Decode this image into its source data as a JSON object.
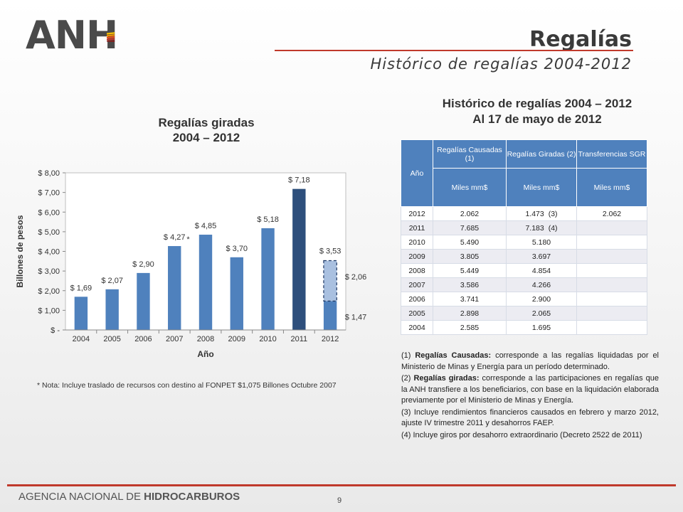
{
  "header": {
    "logo_text": "ANH",
    "title": "Regalías",
    "subtitle": "Histórico de regalías 2004-2012"
  },
  "chart_title_line1": "Regalías giradas",
  "chart_title_line2": "2004 – 2012",
  "chart_data": {
    "type": "bar",
    "title": "Regalías giradas 2004 – 2012",
    "xlabel": "Año",
    "ylabel": "Billones de pesos",
    "categories": [
      "2004",
      "2005",
      "2006",
      "2007",
      "2008",
      "2009",
      "2010",
      "2011",
      "2012"
    ],
    "values": [
      1.69,
      2.07,
      2.9,
      4.27,
      4.85,
      3.7,
      5.18,
      7.18,
      3.53
    ],
    "value_labels": [
      "$ 1,69",
      "$ 2,07",
      "$ 2,90",
      "$ 4,27",
      "$ 4,85",
      "$ 3,70",
      "$ 5,18",
      "$ 7,18",
      "$ 3,53"
    ],
    "stacked_2012": {
      "base": 1.47,
      "top": 2.06,
      "base_label": "$ 1,47",
      "top_label": "$ 2,06"
    },
    "yticks": [
      0,
      1,
      2,
      3,
      4,
      5,
      6,
      7,
      8
    ],
    "ytick_labels": [
      "$ -",
      "$ 1,00",
      "$ 2,00",
      "$ 3,00",
      "$ 4,00",
      "$ 5,00",
      "$ 6,00",
      "$ 7,00",
      "$ 8,00"
    ],
    "ylim": [
      0,
      8
    ],
    "asterisk_on": "2007",
    "colors": {
      "bar": "#4f81bd",
      "highlight": "#2e4f7c",
      "top_segment": "#a9c0e0"
    }
  },
  "chart_note": "* Nota: Incluye traslado de recursos con destino al FONPET $1,075 Billones Octubre 2007",
  "table": {
    "title_line1": "Histórico de regalías 2004 – 2012",
    "title_line2": "Al 17 de mayo de 2012",
    "head_year": "Año",
    "head_causadas": "Regalías Causadas (1)",
    "head_giradas": "Regalías Giradas (2)",
    "head_transfer": "Transferencias SGR",
    "unit": "Miles mm$",
    "rows": [
      {
        "year": "2012",
        "causadas": "2.062",
        "giradas": "1.473",
        "ref": "(3)",
        "sgr": "2.062"
      },
      {
        "year": "2011",
        "causadas": "7.685",
        "giradas": "7.183",
        "ref": "(4)",
        "sgr": ""
      },
      {
        "year": "2010",
        "causadas": "5.490",
        "giradas": "5.180",
        "ref": "",
        "sgr": ""
      },
      {
        "year": "2009",
        "causadas": "3.805",
        "giradas": "3.697",
        "ref": "",
        "sgr": ""
      },
      {
        "year": "2008",
        "causadas": "5.449",
        "giradas": "4.854",
        "ref": "",
        "sgr": ""
      },
      {
        "year": "2007",
        "causadas": "3.586",
        "giradas": "4.266",
        "ref": "",
        "sgr": ""
      },
      {
        "year": "2006",
        "causadas": "3.741",
        "giradas": "2.900",
        "ref": "",
        "sgr": ""
      },
      {
        "year": "2005",
        "causadas": "2.898",
        "giradas": "2.065",
        "ref": "",
        "sgr": ""
      },
      {
        "year": "2004",
        "causadas": "2.585",
        "giradas": "1.695",
        "ref": "",
        "sgr": ""
      }
    ]
  },
  "footnotes": {
    "n1_prefix": "(1) ",
    "n1_bold": "Regalías Causadas:",
    "n1_text": " corresponde a las regalías liquidadas por el Ministerio de Minas y Energía para un período determinado.",
    "n2_prefix": "(2) ",
    "n2_bold": "Regalías giradas:",
    "n2_text": " corresponde a las participaciones en regalías que la ANH transfiere a los beneficiarios, con base en la liquidación elaborada previamente por el Ministerio de Minas y Energía.",
    "n3": "(3) Incluye rendimientos financieros causados en febrero y marzo 2012, ajuste IV trimestre 2011 y desahorros FAEP.",
    "n4": "(4) Incluye giros por desahorro extraordinario (Decreto 2522 de 2011)"
  },
  "footer": {
    "agency_prefix": "AGENCIA NACIONAL DE ",
    "agency_bold": "HIDROCARBUROS",
    "page": "9"
  }
}
